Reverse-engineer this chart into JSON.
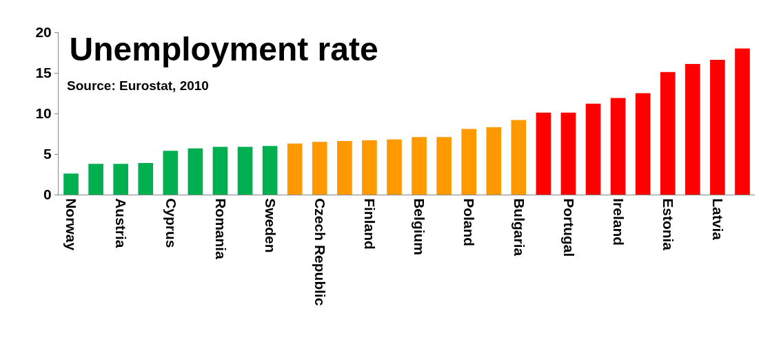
{
  "chart_data": {
    "type": "bar",
    "title": "Unemployment rate",
    "annotations": [
      "Source: Eurostat, 2010"
    ],
    "categories": [
      "Norway",
      null,
      "Austria",
      null,
      "Cyprus",
      null,
      "Romania",
      null,
      "Sweden",
      null,
      "Czech Republic",
      null,
      "Finland",
      null,
      "Belgium",
      null,
      "Poland",
      null,
      "Bulgaria",
      null,
      "Portugal",
      null,
      "Ireland",
      null,
      "Estonia",
      null,
      "Latvia",
      null
    ],
    "values": [
      2.6,
      3.8,
      3.8,
      3.9,
      5.4,
      5.7,
      5.9,
      5.9,
      6.0,
      6.3,
      6.5,
      6.6,
      6.7,
      6.8,
      7.1,
      7.1,
      8.1,
      8.3,
      9.2,
      10.1,
      10.1,
      11.2,
      11.9,
      12.5,
      15.1,
      16.1,
      16.6,
      18.0
    ],
    "colors": [
      "#00b050",
      "#00b050",
      "#00b050",
      "#00b050",
      "#00b050",
      "#00b050",
      "#00b050",
      "#00b050",
      "#00b050",
      "#ff9900",
      "#ff9900",
      "#ff9900",
      "#ff9900",
      "#ff9900",
      "#ff9900",
      "#ff9900",
      "#ff9900",
      "#ff9900",
      "#ff9900",
      "#ff0000",
      "#ff0000",
      "#ff0000",
      "#ff0000",
      "#ff0000",
      "#ff0000",
      "#ff0000",
      "#ff0000",
      "#ff0000"
    ],
    "ylim": [
      0,
      20
    ],
    "yticks": [
      0,
      5,
      10,
      15,
      20
    ],
    "grid": false
  }
}
